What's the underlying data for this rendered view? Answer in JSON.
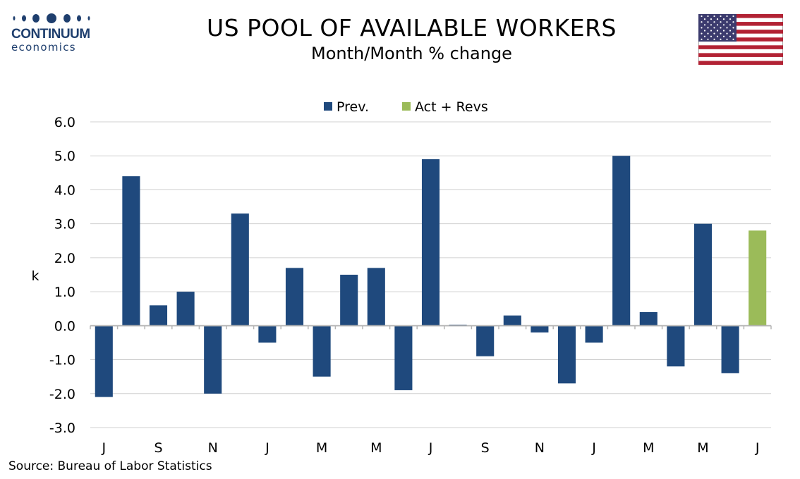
{
  "logo": {
    "word": "CONTINUUM",
    "sub": "economics",
    "color": "#1f3f6e"
  },
  "header": {
    "title": "US POOL OF AVAILABLE WORKERS",
    "subtitle": "Month/Month % change",
    "flag_icon": "us-flag-icon"
  },
  "footer": {
    "source": "Source: Bureau of Labor Statistics"
  },
  "chart_data": {
    "type": "bar",
    "ylabel": "k",
    "ylim": [
      -3.0,
      6.0
    ],
    "yticks": [
      "6.0",
      "5.0",
      "4.0",
      "3.0",
      "2.0",
      "1.0",
      "0.0",
      "-1.0",
      "-2.0",
      "-3.0"
    ],
    "grid": true,
    "legend_position": "top-center",
    "x_tick_labels": [
      "J",
      "S",
      "N",
      "J",
      "M",
      "M",
      "J",
      "S",
      "N",
      "J",
      "M",
      "M",
      "J"
    ],
    "series": [
      {
        "name": "Prev.",
        "color": "#1f497d",
        "values": [
          -2.1,
          4.4,
          0.6,
          1.0,
          -2.0,
          3.3,
          -0.5,
          1.7,
          -1.5,
          1.5,
          1.7,
          -1.9,
          4.9,
          0.03,
          -0.9,
          0.3,
          -0.2,
          -1.7,
          -0.5,
          5.0,
          0.4,
          -1.2,
          3.0,
          -1.4,
          null
        ]
      },
      {
        "name": "Act + Revs",
        "color": "#9bbb59",
        "values": [
          null,
          null,
          null,
          null,
          null,
          null,
          null,
          null,
          null,
          null,
          null,
          null,
          null,
          null,
          null,
          null,
          null,
          null,
          null,
          null,
          null,
          null,
          null,
          null,
          2.8
        ]
      }
    ]
  }
}
